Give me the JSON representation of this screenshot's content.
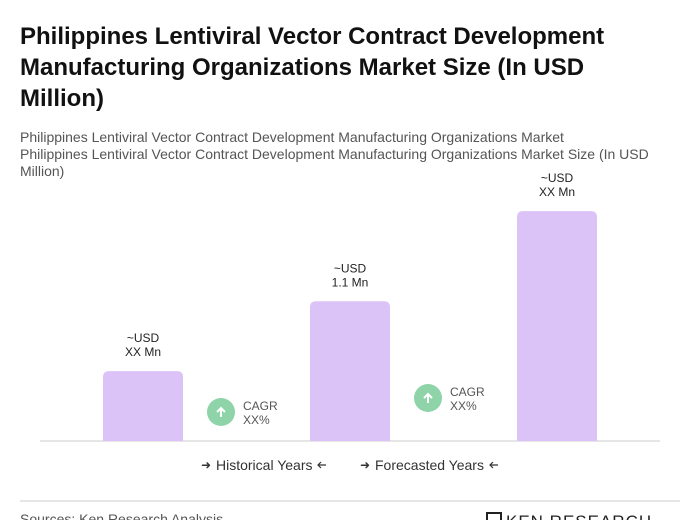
{
  "chart_data": {
    "type": "bar",
    "title": [
      "Philippines Lentiviral Vector Contract Development",
      "Manufacturing Organizations Market Size (In USD",
      "Million)"
    ],
    "subtitle": [
      "Philippines Lentiviral Vector Contract Development Manufacturing Organizations Market",
      "Philippines Lentiviral Vector Contract Development Manufacturing Organizations Market Size (In USD",
      "Million)"
    ],
    "values": [
      0.55,
      1.1,
      1.81
    ],
    "value_labels": [
      [
        "~USD",
        "XX Mn"
      ],
      [
        "~USD",
        "1.1 Mn"
      ],
      [
        "~USD",
        "XX Mn"
      ]
    ],
    "color": "#dcc3f7",
    "ylim": [
      0,
      2
    ],
    "annotations": [
      [
        "CAGR",
        "XX%"
      ],
      [
        "CAGR",
        "XX%"
      ]
    ],
    "legend": [
      "Historical Years",
      "Forecasted Years"
    ],
    "source": "Sources: Ken Research Analysis",
    "logo": "KEN RESEARCH"
  }
}
